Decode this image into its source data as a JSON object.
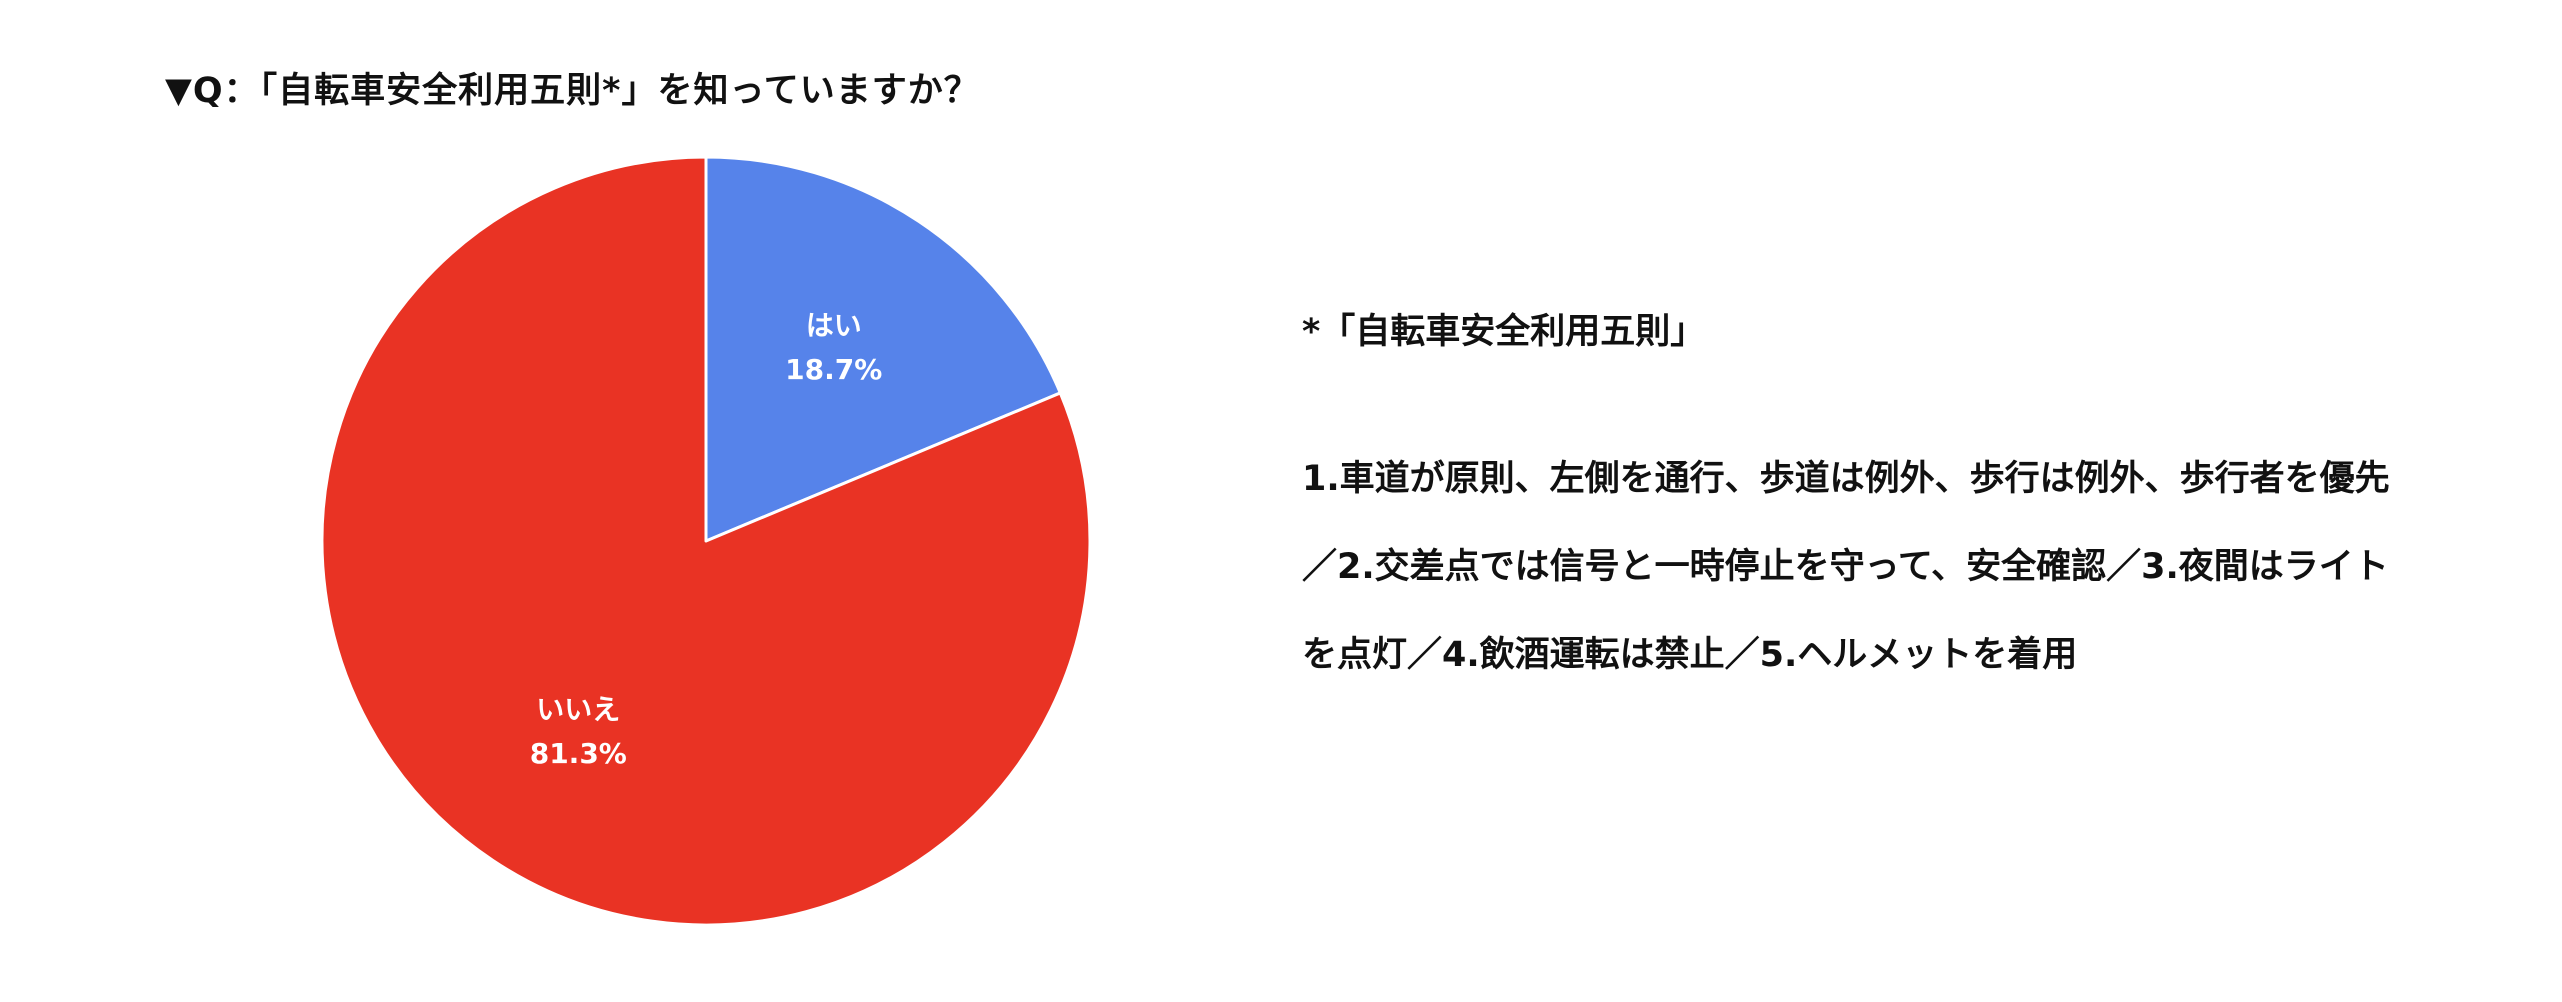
{
  "chart_data": {
    "type": "pie",
    "title": "▼Q：「自転車安全利用五則*」を知っていますか？",
    "slices": [
      {
        "label": "はい",
        "value": 18.7,
        "value_label": "18.7%",
        "color": "#5683EA"
      },
      {
        "label": "いいえ",
        "value": 81.3,
        "value_label": "81.3%",
        "color": "#E93324"
      }
    ],
    "start_angle": "12 o'clock",
    "direction": "clockwise",
    "legend": "none",
    "label_color": "#FFFFFF"
  },
  "note": {
    "heading": "*「自転車安全利用五則」",
    "body": "1.車道が原則、左側を通行、歩道は例外、歩行は例外、歩行者を優先／2.交差点では信号と一時停止を守って、安全確認／3.夜間はライトを点灯／4.飲酒運転は禁止／5.ヘルメットを着用"
  }
}
